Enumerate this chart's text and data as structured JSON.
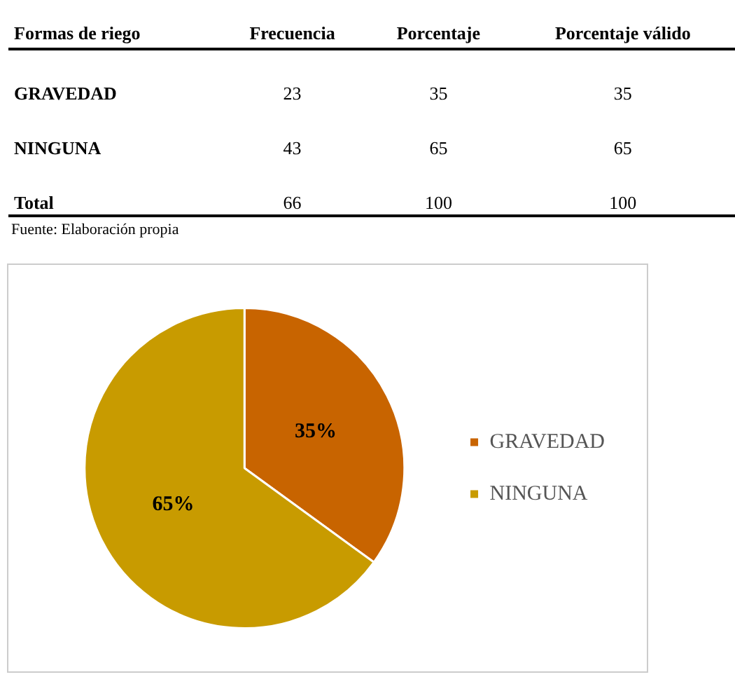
{
  "chart_data": [
    {
      "type": "other",
      "xlabel": "Formas de riego",
      "categories": [
        "GRAVEDAD",
        "NINGUNA",
        "Total"
      ],
      "series": [
        {
          "name": "Frecuencia",
          "values": [
            23,
            43,
            66
          ]
        },
        {
          "name": "Porcentaje",
          "values": [
            35,
            65,
            100
          ]
        },
        {
          "name": "Porcentaje válido",
          "values": [
            35,
            65,
            100
          ]
        }
      ],
      "data_labels": true,
      "annotations": [
        "Fuente: Elaboración propia"
      ]
    },
    {
      "type": "pie",
      "categories": [
        "GRAVEDAD",
        "NINGUNA"
      ],
      "values": [
        35,
        65
      ],
      "colors": [
        "#c86400",
        "#c89b00"
      ],
      "value_labels": [
        "35%",
        "65%"
      ],
      "legend": "right"
    }
  ]
}
